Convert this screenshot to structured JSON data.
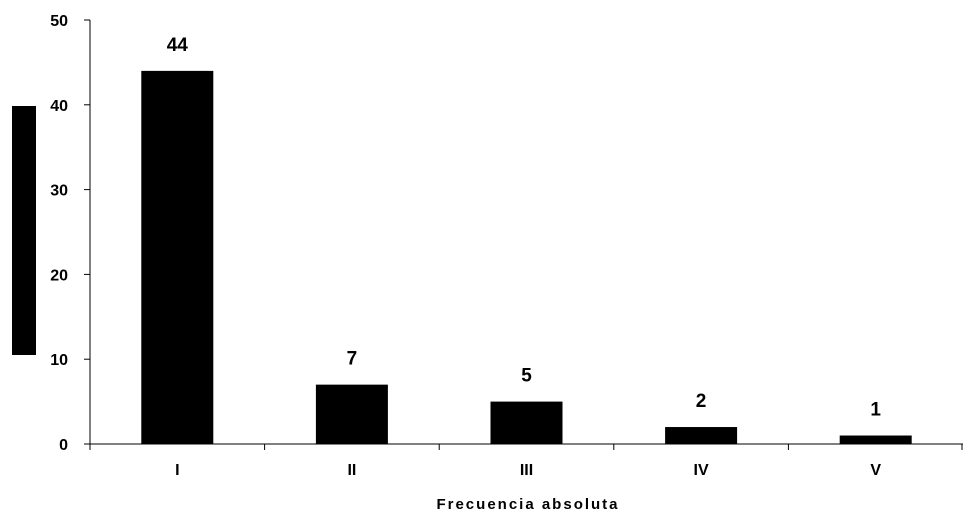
{
  "chart_data": {
    "type": "bar",
    "categories": [
      "I",
      "II",
      "III",
      "IV",
      "V"
    ],
    "values": [
      44,
      7,
      5,
      2,
      1
    ],
    "data_labels": [
      "44",
      "7",
      "5",
      "2",
      "1"
    ],
    "xlabel": "Frecuencia absoluta",
    "ylabel": "",
    "ylim": [
      0,
      50
    ],
    "yticks": [
      0,
      10,
      20,
      30,
      40,
      50
    ],
    "grid": false,
    "legend": "left",
    "colors": {
      "bar": "#000000",
      "axis": "#000000",
      "legend_key": "#000000",
      "background": "#ffffff"
    }
  }
}
